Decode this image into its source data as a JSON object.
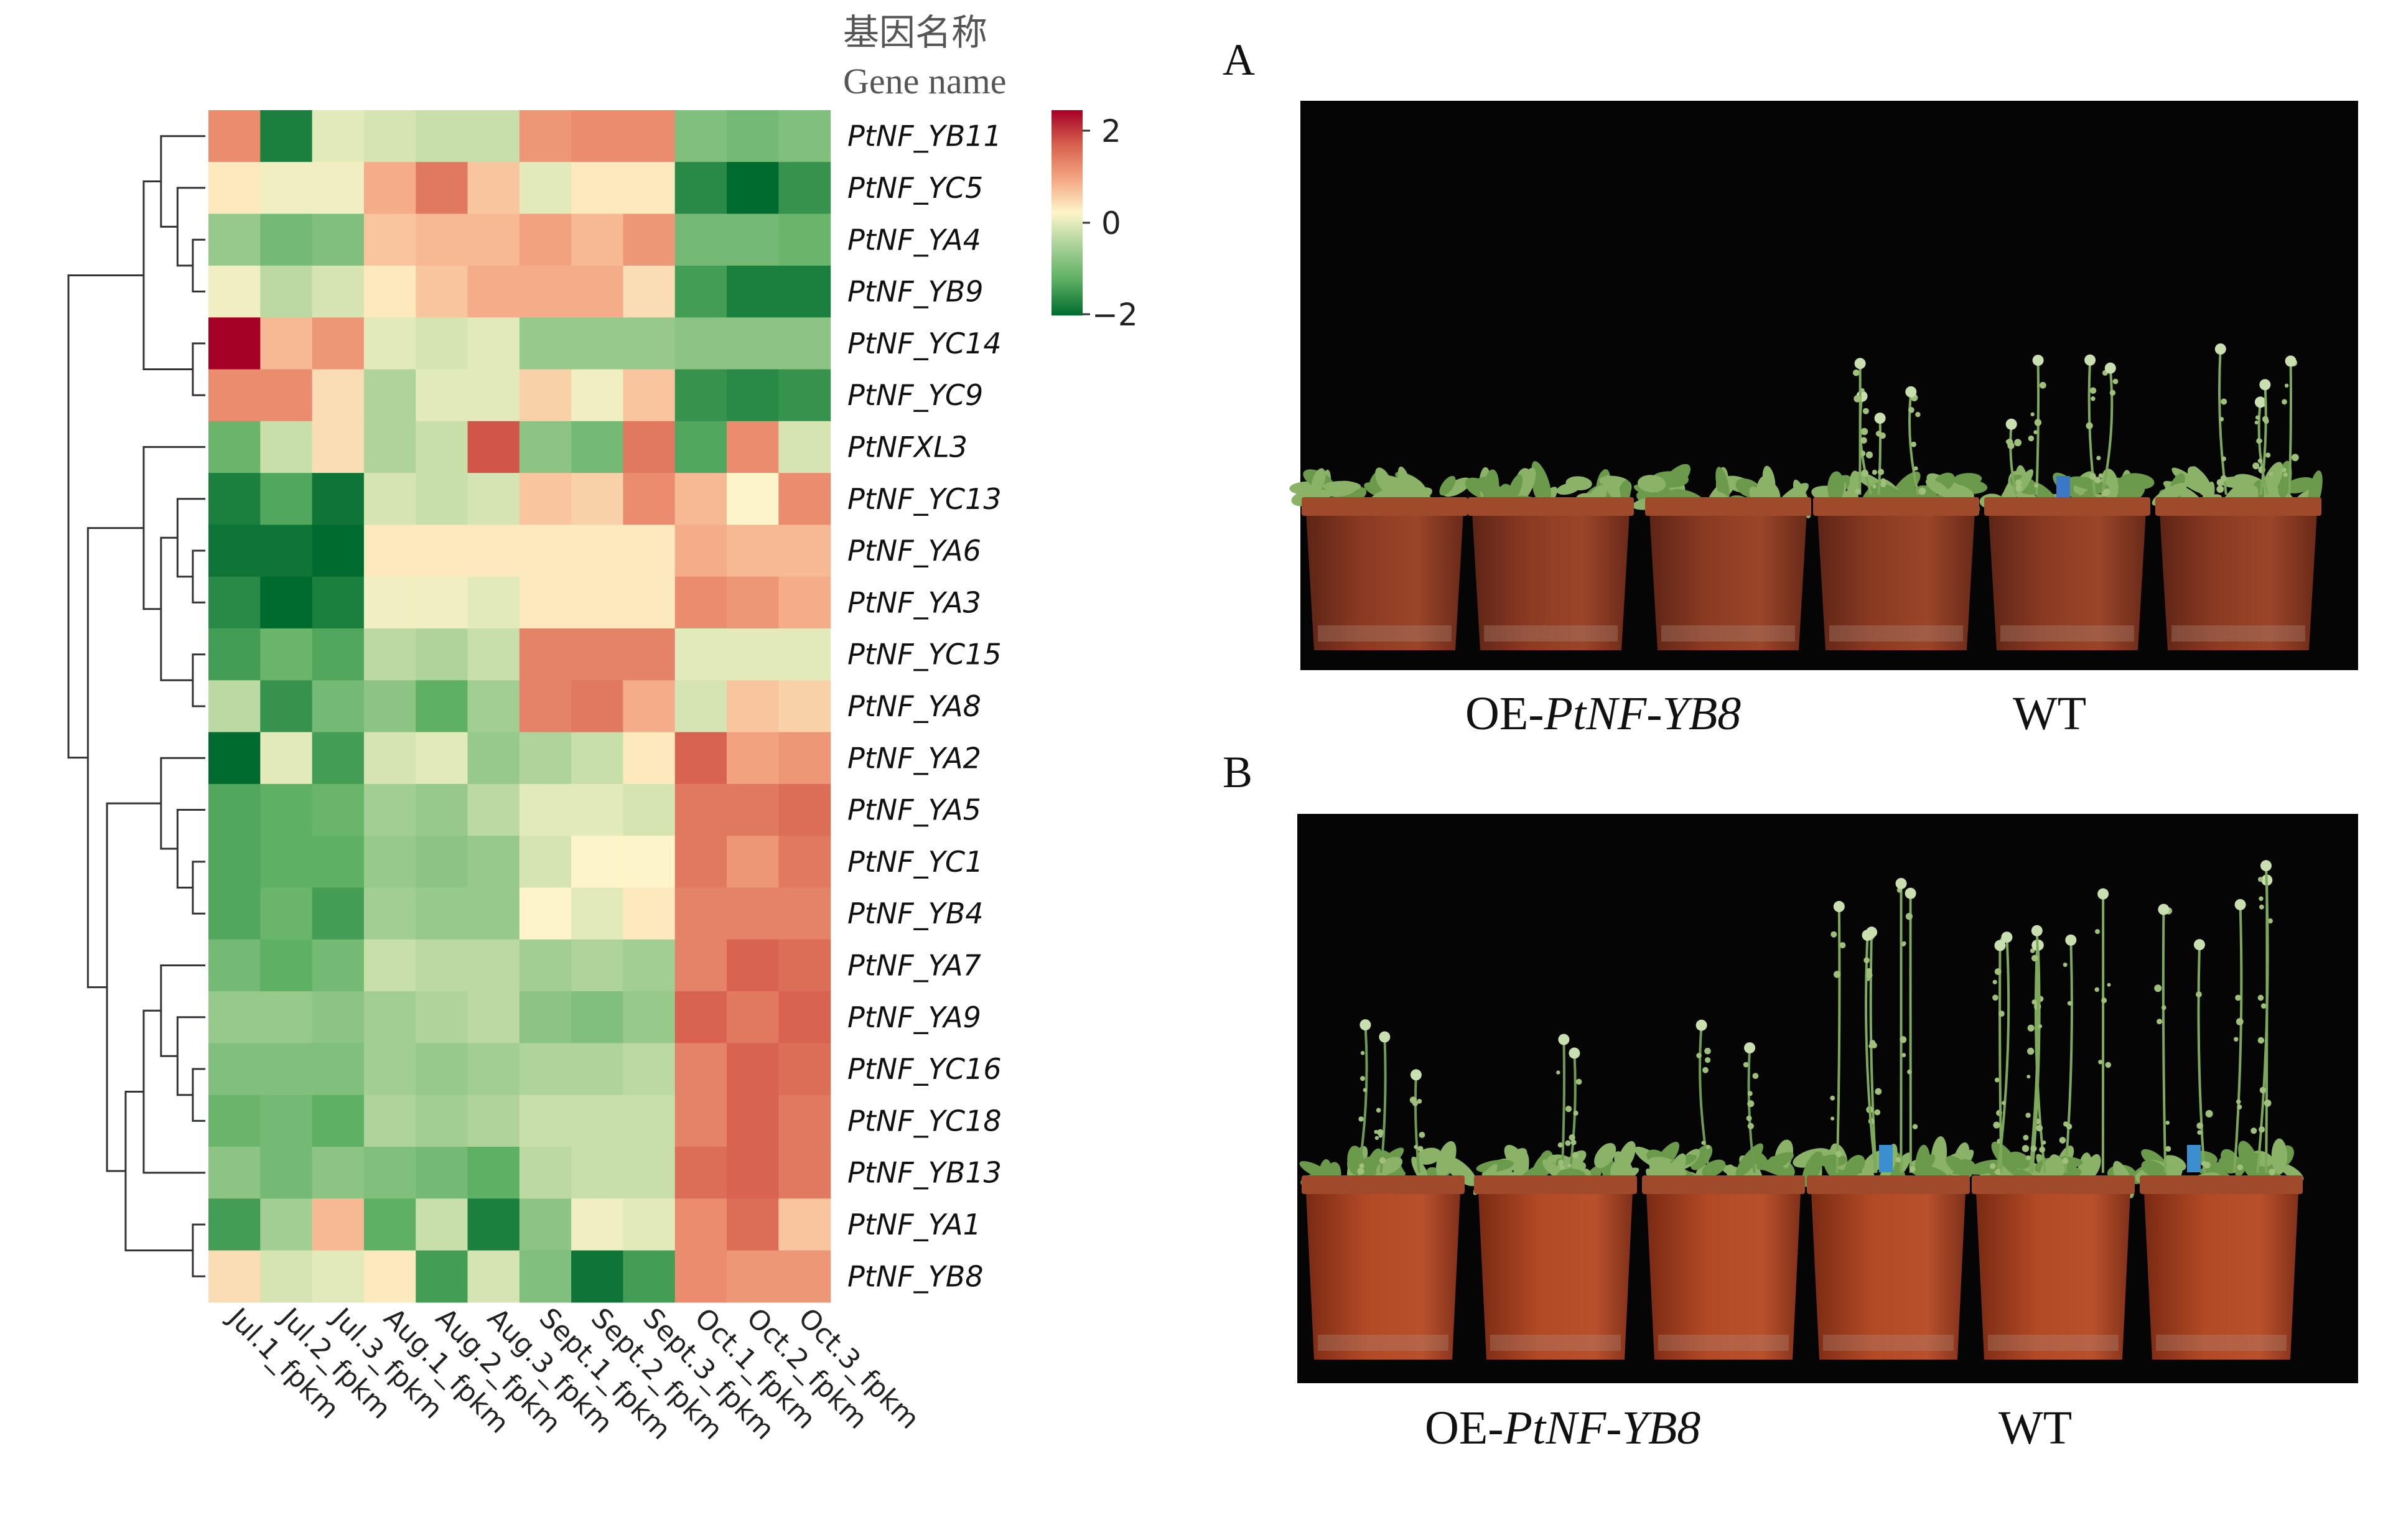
{
  "heatmap": {
    "header_cn": "基因名称",
    "header_en": "Gene name",
    "legend_ticks": [
      "2",
      "0",
      "−2"
    ],
    "legend_colors": [
      "#a50026",
      "#d6604d",
      "#f4a582",
      "#fdf5c9",
      "#a6d096",
      "#5aae61",
      "#006b2f"
    ]
  },
  "chart_data": {
    "type": "heatmap",
    "columns": [
      "Jul.1_fpkm",
      "Jul.2_fpkm",
      "Jul.3_fpkm",
      "Aug.1_fpkm",
      "Aug.2_fpkm",
      "Aug.3_fpkm",
      "Sept.1_fpkm",
      "Sept.2_fpkm",
      "Sept.3_fpkm",
      "Oct.1_fpkm",
      "Oct.2_fpkm",
      "Oct.3_fpkm"
    ],
    "rows": [
      "PtNF_YB11",
      "PtNF_YC5",
      "PtNF_YA4",
      "PtNF_YB9",
      "PtNF_YC14",
      "PtNF_YC9",
      "PtNFXL3",
      "PtNF_YC13",
      "PtNF_YA6",
      "PtNF_YA3",
      "PtNF_YC15",
      "PtNF_YA8",
      "PtNF_YA2",
      "PtNF_YA5",
      "PtNF_YC1",
      "PtNF_YB4",
      "PtNF_YA7",
      "PtNF_YA9",
      "PtNF_YC16",
      "PtNF_YC18",
      "PtNF_YB13",
      "PtNF_YA1",
      "PtNF_YB8"
    ],
    "values": [
      [
        0.9,
        -1.8,
        -0.2,
        -0.3,
        -0.4,
        -0.4,
        0.8,
        0.9,
        0.9,
        -1.0,
        -1.1,
        -1.0
      ],
      [
        0.1,
        -0.1,
        -0.1,
        0.6,
        1.1,
        0.4,
        -0.2,
        0.1,
        0.1,
        -1.7,
        -2.2,
        -1.6
      ],
      [
        -0.8,
        -1.1,
        -1.0,
        0.4,
        0.5,
        0.5,
        0.7,
        0.5,
        0.8,
        -1.1,
        -1.1,
        -1.2
      ],
      [
        -0.1,
        -0.5,
        -0.3,
        0.1,
        0.4,
        0.6,
        0.6,
        0.6,
        0.2,
        -1.5,
        -1.8,
        -1.8
      ],
      [
        2.2,
        0.5,
        0.8,
        -0.2,
        -0.3,
        -0.2,
        -0.8,
        -0.8,
        -0.8,
        -0.9,
        -0.9,
        -0.9
      ],
      [
        0.9,
        0.9,
        0.2,
        -0.6,
        -0.2,
        -0.2,
        0.3,
        -0.1,
        0.4,
        -1.6,
        -1.7,
        -1.6
      ],
      [
        -1.2,
        -0.4,
        0.2,
        -0.6,
        -0.4,
        1.4,
        -0.9,
        -1.1,
        1.1,
        -1.4,
        0.9,
        -0.3
      ],
      [
        -1.8,
        -1.4,
        -1.9,
        -0.3,
        -0.4,
        -0.3,
        0.4,
        0.3,
        0.9,
        0.5,
        0.0,
        0.9
      ],
      [
        -1.9,
        -1.9,
        -2.0,
        0.1,
        0.1,
        0.1,
        0.1,
        0.1,
        0.1,
        0.6,
        0.5,
        0.5
      ],
      [
        -1.7,
        -2.0,
        -1.8,
        -0.1,
        -0.1,
        -0.2,
        0.1,
        0.1,
        0.1,
        0.9,
        0.8,
        0.6
      ],
      [
        -1.5,
        -1.2,
        -1.4,
        -0.5,
        -0.6,
        -0.4,
        1.0,
        1.0,
        1.0,
        -0.2,
        -0.2,
        -0.2
      ],
      [
        -0.5,
        -1.6,
        -1.1,
        -0.9,
        -1.3,
        -0.7,
        1.0,
        1.1,
        0.6,
        -0.3,
        0.4,
        0.3
      ],
      [
        -2.0,
        -0.2,
        -1.5,
        -0.3,
        -0.2,
        -0.8,
        -0.6,
        -0.4,
        0.1,
        1.3,
        0.7,
        0.8
      ],
      [
        -1.4,
        -1.3,
        -1.2,
        -0.7,
        -0.8,
        -0.5,
        -0.2,
        -0.2,
        -0.3,
        1.1,
        1.1,
        1.2
      ],
      [
        -1.4,
        -1.3,
        -1.3,
        -0.8,
        -0.9,
        -0.8,
        -0.3,
        0.0,
        0.0,
        1.1,
        0.8,
        1.1
      ],
      [
        -1.4,
        -1.2,
        -1.5,
        -0.7,
        -0.8,
        -0.8,
        0.0,
        -0.2,
        0.1,
        1.0,
        1.0,
        1.0
      ],
      [
        -1.1,
        -1.3,
        -1.1,
        -0.4,
        -0.5,
        -0.5,
        -0.7,
        -0.6,
        -0.7,
        1.0,
        1.3,
        1.2
      ],
      [
        -0.8,
        -0.8,
        -0.9,
        -0.7,
        -0.6,
        -0.5,
        -0.9,
        -1.0,
        -0.8,
        1.3,
        1.1,
        1.3
      ],
      [
        -1.0,
        -1.0,
        -1.0,
        -0.7,
        -0.8,
        -0.7,
        -0.6,
        -0.6,
        -0.5,
        1.0,
        1.3,
        1.2
      ],
      [
        -1.2,
        -1.1,
        -1.3,
        -0.6,
        -0.7,
        -0.6,
        -0.4,
        -0.4,
        -0.4,
        1.0,
        1.3,
        1.1
      ],
      [
        -0.9,
        -1.1,
        -0.9,
        -1.0,
        -1.1,
        -1.3,
        -0.5,
        -0.4,
        -0.4,
        1.2,
        1.3,
        1.1
      ],
      [
        -1.5,
        -0.7,
        0.5,
        -1.3,
        -0.4,
        -1.8,
        -0.9,
        -0.1,
        -0.2,
        0.9,
        1.2,
        0.4
      ],
      [
        0.2,
        -0.3,
        -0.2,
        0.1,
        -1.5,
        -0.3,
        -1.0,
        -1.9,
        -1.5,
        0.9,
        0.8,
        0.8
      ]
    ],
    "range": [
      -2,
      2
    ]
  },
  "panel_a": {
    "label": "A",
    "caption_prefix": "OE-",
    "caption_gene": "PtNF-YB8",
    "caption_wt": "WT"
  },
  "panel_b": {
    "label": "B",
    "caption_prefix": "OE-",
    "caption_gene": "PtNF-YB8",
    "caption_wt": "WT"
  }
}
